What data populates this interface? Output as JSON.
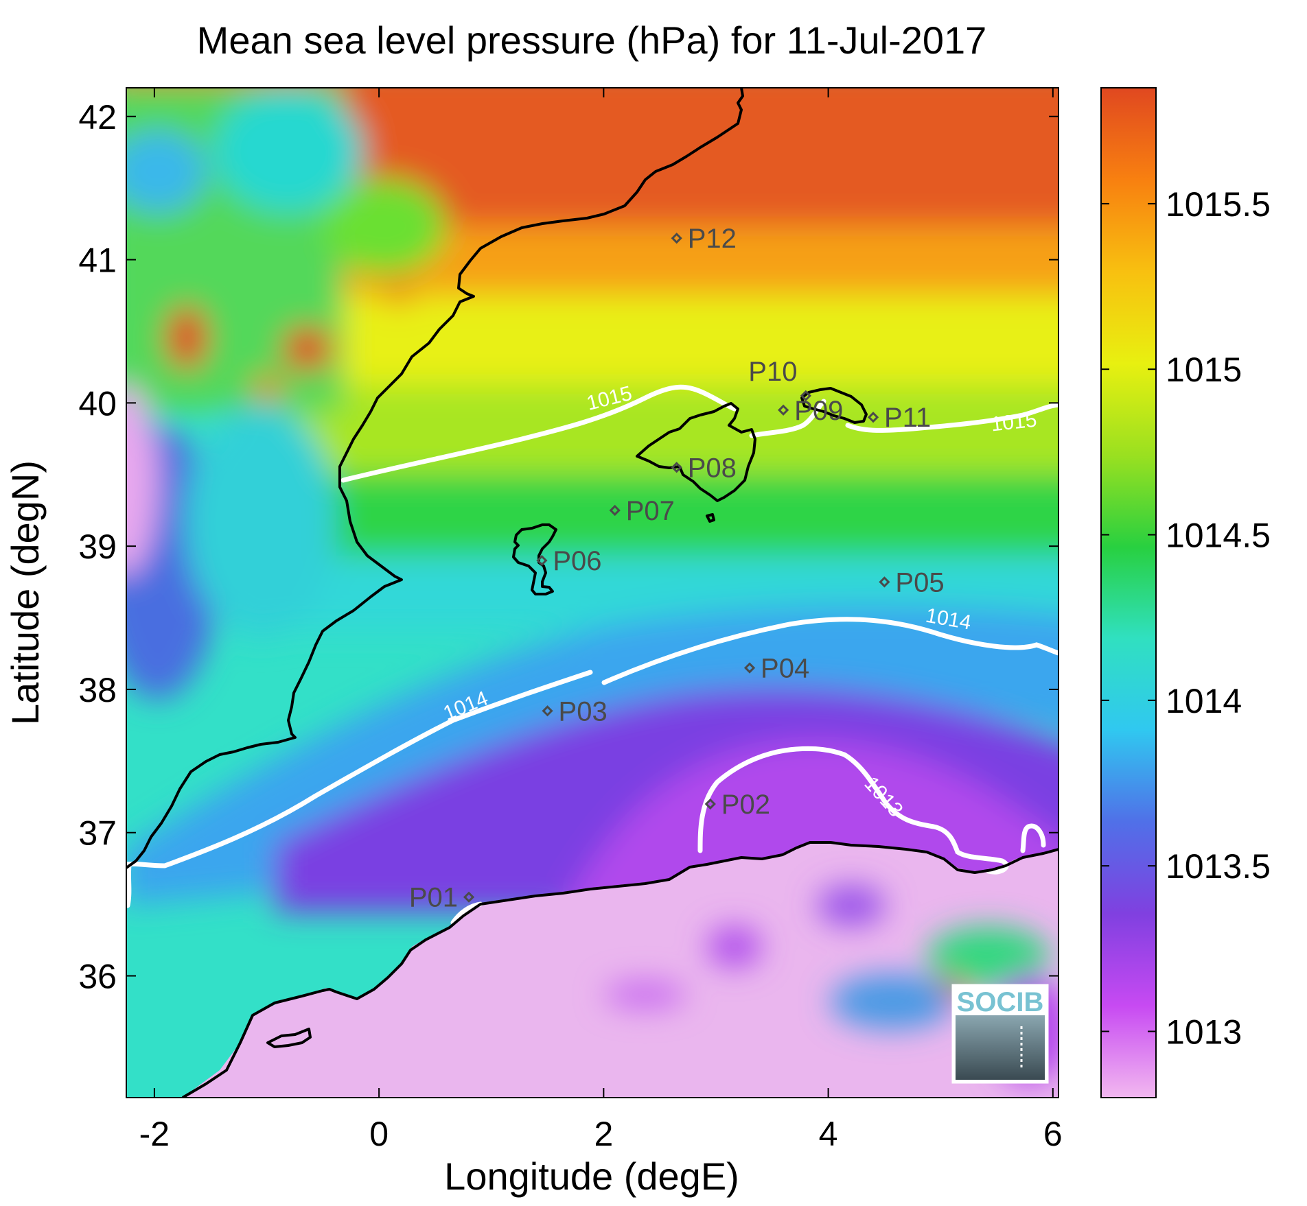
{
  "title": "Mean sea level pressure (hPa) for 11-Jul-2017",
  "xlabel": "Longitude (degE)",
  "ylabel": "Latitude (degN)",
  "x_ticks": [
    "-2",
    "0",
    "2",
    "4",
    "6"
  ],
  "y_ticks": [
    "36",
    "37",
    "38",
    "39",
    "40",
    "41",
    "42"
  ],
  "colorbar": {
    "ticks": [
      "1013",
      "1013.5",
      "1014",
      "1014.5",
      "1015",
      "1015.5"
    ],
    "range": [
      1012.8,
      1015.85
    ],
    "colors": [
      "#f2b8f0",
      "#c74af2",
      "#8040e0",
      "#5070e8",
      "#30c8f0",
      "#30e0c0",
      "#28d040",
      "#9ae020",
      "#e8f010",
      "#f8c010",
      "#f88010",
      "#e04820"
    ]
  },
  "logo_text": "SOCIB",
  "chart_data": {
    "type": "heatmap",
    "title": "Mean sea level pressure (hPa) for 11-Jul-2017",
    "xlabel": "Longitude (degE)",
    "ylabel": "Latitude (degN)",
    "xlim": [
      -2.25,
      6.05
    ],
    "ylim": [
      35.15,
      42.2
    ],
    "colorbar_range": [
      1012.8,
      1015.85
    ],
    "contours": [
      {
        "level": 1013,
        "label": "1013"
      },
      {
        "level": 1014,
        "label": "1014"
      },
      {
        "level": 1015,
        "label": "1015"
      }
    ],
    "stations": [
      {
        "name": "P01",
        "lon": 0.8,
        "lat": 36.55
      },
      {
        "name": "P02",
        "lon": 2.95,
        "lat": 37.2
      },
      {
        "name": "P03",
        "lon": 1.5,
        "lat": 37.85
      },
      {
        "name": "P04",
        "lon": 3.3,
        "lat": 38.15
      },
      {
        "name": "P05",
        "lon": 4.5,
        "lat": 38.75
      },
      {
        "name": "P06",
        "lon": 1.45,
        "lat": 38.9
      },
      {
        "name": "P07",
        "lon": 2.1,
        "lat": 39.25
      },
      {
        "name": "P08",
        "lon": 2.65,
        "lat": 39.55
      },
      {
        "name": "P09",
        "lon": 3.6,
        "lat": 39.95
      },
      {
        "name": "P10",
        "lon": 3.8,
        "lat": 40.05
      },
      {
        "name": "P11",
        "lon": 4.4,
        "lat": 39.9
      },
      {
        "name": "P12",
        "lon": 2.65,
        "lat": 41.15
      }
    ]
  }
}
